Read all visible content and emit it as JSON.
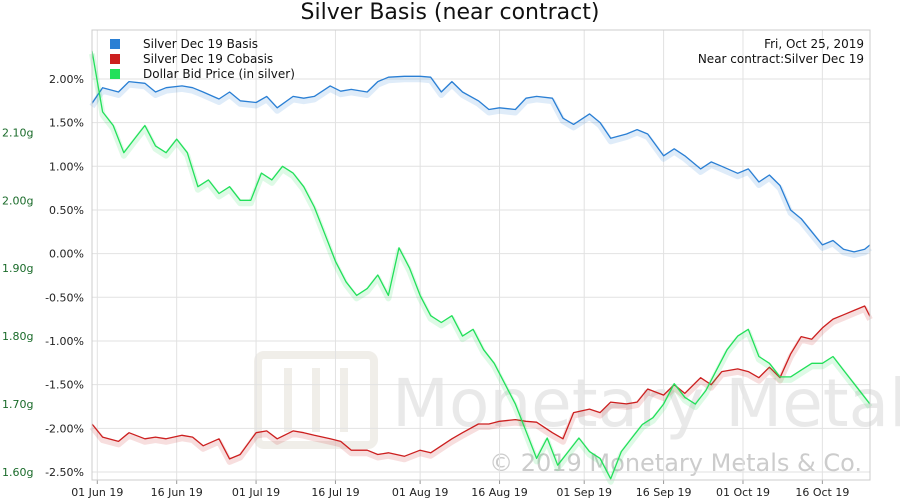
{
  "chart_data": {
    "type": "line",
    "title": "Silver Basis (near contract)",
    "date_label": "Fri, Oct 25, 2019",
    "near_contract_label": "Near contract:Silver Dec 19",
    "watermark": "© 2019 Monetary Metals & Co.",
    "watermark_logo_text": "Monetary Metals",
    "legend_position": "top-left",
    "grid": true,
    "x_ticks": [
      "01 Jun 19",
      "16 Jun 19",
      "01 Jul 19",
      "16 Jul 19",
      "01 Aug 19",
      "16 Aug 19",
      "01 Sep 19",
      "16 Sep 19",
      "01 Oct 19",
      "16 Oct 19"
    ],
    "xlim": [
      "2019-05-31",
      "2019-10-25"
    ],
    "y_left": {
      "ticks": [
        "2.00%",
        "1.50%",
        "1.00%",
        "0.50%",
        "0.00%",
        "-0.50%",
        "-1.00%",
        "-1.50%",
        "-2.00%",
        "-2.50%"
      ],
      "range": [
        -2.5,
        2.4
      ]
    },
    "y_right": {
      "ticks": [
        "2.10g",
        "2.00g",
        "1.90g",
        "1.80g",
        "1.70g",
        "1.60g"
      ],
      "range": [
        1.6,
        2.23
      ]
    },
    "series": [
      {
        "name": "Silver Dec 19 Basis",
        "color": "#2a7fd4",
        "axis": "left",
        "points": [
          [
            "2019-05-31",
            1.72
          ],
          [
            "2019-06-02",
            1.9
          ],
          [
            "2019-06-05",
            1.85
          ],
          [
            "2019-06-07",
            1.97
          ],
          [
            "2019-06-10",
            1.95
          ],
          [
            "2019-06-12",
            1.85
          ],
          [
            "2019-06-14",
            1.9
          ],
          [
            "2019-06-17",
            1.92
          ],
          [
            "2019-06-19",
            1.9
          ],
          [
            "2019-06-21",
            1.85
          ],
          [
            "2019-06-24",
            1.77
          ],
          [
            "2019-06-26",
            1.85
          ],
          [
            "2019-06-28",
            1.75
          ],
          [
            "2019-07-01",
            1.73
          ],
          [
            "2019-07-03",
            1.8
          ],
          [
            "2019-07-05",
            1.67
          ],
          [
            "2019-07-08",
            1.8
          ],
          [
            "2019-07-10",
            1.78
          ],
          [
            "2019-07-12",
            1.8
          ],
          [
            "2019-07-15",
            1.92
          ],
          [
            "2019-07-17",
            1.86
          ],
          [
            "2019-07-19",
            1.88
          ],
          [
            "2019-07-22",
            1.85
          ],
          [
            "2019-07-24",
            1.97
          ],
          [
            "2019-07-26",
            2.02
          ],
          [
            "2019-07-29",
            2.03
          ],
          [
            "2019-08-01",
            2.03
          ],
          [
            "2019-08-03",
            2.02
          ],
          [
            "2019-08-05",
            1.85
          ],
          [
            "2019-08-07",
            1.97
          ],
          [
            "2019-08-09",
            1.85
          ],
          [
            "2019-08-12",
            1.75
          ],
          [
            "2019-08-14",
            1.65
          ],
          [
            "2019-08-16",
            1.67
          ],
          [
            "2019-08-19",
            1.65
          ],
          [
            "2019-08-21",
            1.78
          ],
          [
            "2019-08-23",
            1.8
          ],
          [
            "2019-08-26",
            1.78
          ],
          [
            "2019-08-28",
            1.55
          ],
          [
            "2019-08-30",
            1.48
          ],
          [
            "2019-09-02",
            1.6
          ],
          [
            "2019-09-04",
            1.5
          ],
          [
            "2019-09-06",
            1.32
          ],
          [
            "2019-09-09",
            1.37
          ],
          [
            "2019-09-11",
            1.42
          ],
          [
            "2019-09-13",
            1.37
          ],
          [
            "2019-09-16",
            1.12
          ],
          [
            "2019-09-18",
            1.2
          ],
          [
            "2019-09-20",
            1.12
          ],
          [
            "2019-09-23",
            0.97
          ],
          [
            "2019-09-25",
            1.05
          ],
          [
            "2019-09-27",
            1.0
          ],
          [
            "2019-09-30",
            0.92
          ],
          [
            "2019-10-02",
            0.97
          ],
          [
            "2019-10-04",
            0.82
          ],
          [
            "2019-10-06",
            0.9
          ],
          [
            "2019-10-08",
            0.78
          ],
          [
            "2019-10-10",
            0.5
          ],
          [
            "2019-10-12",
            0.4
          ],
          [
            "2019-10-14",
            0.25
          ],
          [
            "2019-10-16",
            0.1
          ],
          [
            "2019-10-18",
            0.15
          ],
          [
            "2019-10-20",
            0.05
          ],
          [
            "2019-10-22",
            0.02
          ],
          [
            "2019-10-24",
            0.05
          ],
          [
            "2019-10-25",
            0.1
          ]
        ]
      },
      {
        "name": "Silver Dec 19 Cobasis",
        "color": "#cc1f1f",
        "axis": "left",
        "points": [
          [
            "2019-05-31",
            -1.95
          ],
          [
            "2019-06-02",
            -2.1
          ],
          [
            "2019-06-05",
            -2.15
          ],
          [
            "2019-06-07",
            -2.05
          ],
          [
            "2019-06-10",
            -2.12
          ],
          [
            "2019-06-12",
            -2.1
          ],
          [
            "2019-06-14",
            -2.12
          ],
          [
            "2019-06-17",
            -2.08
          ],
          [
            "2019-06-19",
            -2.1
          ],
          [
            "2019-06-21",
            -2.2
          ],
          [
            "2019-06-24",
            -2.12
          ],
          [
            "2019-06-26",
            -2.35
          ],
          [
            "2019-06-28",
            -2.3
          ],
          [
            "2019-07-01",
            -2.05
          ],
          [
            "2019-07-03",
            -2.03
          ],
          [
            "2019-07-05",
            -2.12
          ],
          [
            "2019-07-08",
            -2.03
          ],
          [
            "2019-07-10",
            -2.05
          ],
          [
            "2019-07-12",
            -2.08
          ],
          [
            "2019-07-15",
            -2.12
          ],
          [
            "2019-07-17",
            -2.15
          ],
          [
            "2019-07-19",
            -2.25
          ],
          [
            "2019-07-22",
            -2.25
          ],
          [
            "2019-07-24",
            -2.3
          ],
          [
            "2019-07-26",
            -2.28
          ],
          [
            "2019-07-29",
            -2.32
          ],
          [
            "2019-08-01",
            -2.25
          ],
          [
            "2019-08-03",
            -2.28
          ],
          [
            "2019-08-05",
            -2.2
          ],
          [
            "2019-08-07",
            -2.12
          ],
          [
            "2019-08-09",
            -2.05
          ],
          [
            "2019-08-12",
            -1.95
          ],
          [
            "2019-08-14",
            -1.95
          ],
          [
            "2019-08-16",
            -1.92
          ],
          [
            "2019-08-19",
            -1.9
          ],
          [
            "2019-08-21",
            -1.92
          ],
          [
            "2019-08-23",
            -1.93
          ],
          [
            "2019-08-26",
            -2.05
          ],
          [
            "2019-08-28",
            -2.12
          ],
          [
            "2019-08-30",
            -1.82
          ],
          [
            "2019-09-02",
            -1.78
          ],
          [
            "2019-09-04",
            -1.82
          ],
          [
            "2019-09-06",
            -1.7
          ],
          [
            "2019-09-09",
            -1.72
          ],
          [
            "2019-09-11",
            -1.7
          ],
          [
            "2019-09-13",
            -1.55
          ],
          [
            "2019-09-16",
            -1.62
          ],
          [
            "2019-09-18",
            -1.5
          ],
          [
            "2019-09-20",
            -1.6
          ],
          [
            "2019-09-23",
            -1.42
          ],
          [
            "2019-09-25",
            -1.5
          ],
          [
            "2019-09-27",
            -1.35
          ],
          [
            "2019-09-30",
            -1.32
          ],
          [
            "2019-10-02",
            -1.35
          ],
          [
            "2019-10-04",
            -1.42
          ],
          [
            "2019-10-06",
            -1.3
          ],
          [
            "2019-10-08",
            -1.42
          ],
          [
            "2019-10-10",
            -1.15
          ],
          [
            "2019-10-12",
            -0.95
          ],
          [
            "2019-10-14",
            -0.98
          ],
          [
            "2019-10-16",
            -0.85
          ],
          [
            "2019-10-18",
            -0.75
          ],
          [
            "2019-10-20",
            -0.7
          ],
          [
            "2019-10-22",
            -0.65
          ],
          [
            "2019-10-24",
            -0.6
          ],
          [
            "2019-10-25",
            -0.72
          ]
        ]
      },
      {
        "name": "Dollar Bid Price (in silver)",
        "color": "#22e05a",
        "axis": "right",
        "points": [
          [
            "2019-05-31",
            2.22
          ],
          [
            "2019-06-02",
            2.13
          ],
          [
            "2019-06-04",
            2.11
          ],
          [
            "2019-06-06",
            2.07
          ],
          [
            "2019-06-08",
            2.09
          ],
          [
            "2019-06-10",
            2.11
          ],
          [
            "2019-06-12",
            2.08
          ],
          [
            "2019-06-14",
            2.07
          ],
          [
            "2019-06-16",
            2.09
          ],
          [
            "2019-06-18",
            2.07
          ],
          [
            "2019-06-20",
            2.02
          ],
          [
            "2019-06-22",
            2.03
          ],
          [
            "2019-06-24",
            2.01
          ],
          [
            "2019-06-26",
            2.02
          ],
          [
            "2019-06-28",
            2.0
          ],
          [
            "2019-06-30",
            2.0
          ],
          [
            "2019-07-02",
            2.04
          ],
          [
            "2019-07-04",
            2.03
          ],
          [
            "2019-07-06",
            2.05
          ],
          [
            "2019-07-08",
            2.04
          ],
          [
            "2019-07-10",
            2.02
          ],
          [
            "2019-07-12",
            1.99
          ],
          [
            "2019-07-14",
            1.95
          ],
          [
            "2019-07-16",
            1.91
          ],
          [
            "2019-07-18",
            1.88
          ],
          [
            "2019-07-20",
            1.86
          ],
          [
            "2019-07-22",
            1.87
          ],
          [
            "2019-07-24",
            1.89
          ],
          [
            "2019-07-26",
            1.86
          ],
          [
            "2019-07-28",
            1.93
          ],
          [
            "2019-07-30",
            1.9
          ],
          [
            "2019-08-01",
            1.86
          ],
          [
            "2019-08-03",
            1.83
          ],
          [
            "2019-08-05",
            1.82
          ],
          [
            "2019-08-07",
            1.83
          ],
          [
            "2019-08-09",
            1.8
          ],
          [
            "2019-08-11",
            1.81
          ],
          [
            "2019-08-13",
            1.78
          ],
          [
            "2019-08-15",
            1.76
          ],
          [
            "2019-08-17",
            1.73
          ],
          [
            "2019-08-19",
            1.7
          ],
          [
            "2019-08-21",
            1.66
          ],
          [
            "2019-08-23",
            1.62
          ],
          [
            "2019-08-25",
            1.65
          ],
          [
            "2019-08-27",
            1.61
          ],
          [
            "2019-08-29",
            1.63
          ],
          [
            "2019-08-31",
            1.65
          ],
          [
            "2019-09-02",
            1.63
          ],
          [
            "2019-09-04",
            1.62
          ],
          [
            "2019-09-06",
            1.59
          ],
          [
            "2019-09-08",
            1.63
          ],
          [
            "2019-09-10",
            1.65
          ],
          [
            "2019-09-12",
            1.67
          ],
          [
            "2019-09-14",
            1.68
          ],
          [
            "2019-09-16",
            1.7
          ],
          [
            "2019-09-18",
            1.73
          ],
          [
            "2019-09-20",
            1.71
          ],
          [
            "2019-09-22",
            1.7
          ],
          [
            "2019-09-24",
            1.72
          ],
          [
            "2019-09-26",
            1.75
          ],
          [
            "2019-09-28",
            1.78
          ],
          [
            "2019-09-30",
            1.8
          ],
          [
            "2019-10-02",
            1.81
          ],
          [
            "2019-10-04",
            1.77
          ],
          [
            "2019-10-06",
            1.76
          ],
          [
            "2019-10-08",
            1.74
          ],
          [
            "2019-10-10",
            1.74
          ],
          [
            "2019-10-12",
            1.75
          ],
          [
            "2019-10-14",
            1.76
          ],
          [
            "2019-10-16",
            1.76
          ],
          [
            "2019-10-18",
            1.77
          ],
          [
            "2019-10-20",
            1.75
          ],
          [
            "2019-10-22",
            1.73
          ],
          [
            "2019-10-24",
            1.71
          ],
          [
            "2019-10-25",
            1.7
          ]
        ]
      }
    ]
  }
}
